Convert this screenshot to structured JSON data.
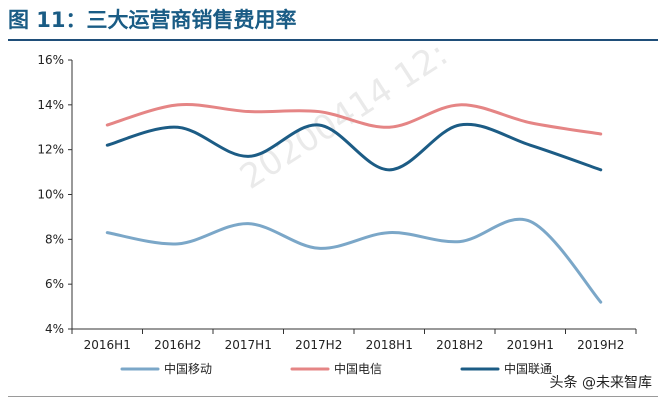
{
  "title": "图 11：三大运营商销售费用率",
  "watermark": "20200414 12:",
  "brand": "头条 @未来智库",
  "chart_data": {
    "type": "line",
    "categories": [
      "2016H1",
      "2016H2",
      "2017H1",
      "2017H2",
      "2018H1",
      "2018H2",
      "2019H1",
      "2019H2"
    ],
    "y_ticks": [
      "4%",
      "6%",
      "8%",
      "10%",
      "12%",
      "14%",
      "16%"
    ],
    "ylim": [
      4,
      16
    ],
    "grid": false,
    "smooth": true,
    "legend_position": "bottom",
    "series": [
      {
        "name": "中国移动",
        "color": "#7ba7c8",
        "values": [
          8.3,
          7.8,
          8.7,
          7.6,
          8.3,
          7.9,
          8.8,
          5.2
        ]
      },
      {
        "name": "中国电信",
        "color": "#e58585",
        "values": [
          13.1,
          14.0,
          13.7,
          13.7,
          13.0,
          14.0,
          13.2,
          12.7
        ]
      },
      {
        "name": "中国联通",
        "color": "#1c5c85",
        "values": [
          12.2,
          13.0,
          11.7,
          13.1,
          11.1,
          13.1,
          12.2,
          11.1
        ]
      }
    ]
  }
}
